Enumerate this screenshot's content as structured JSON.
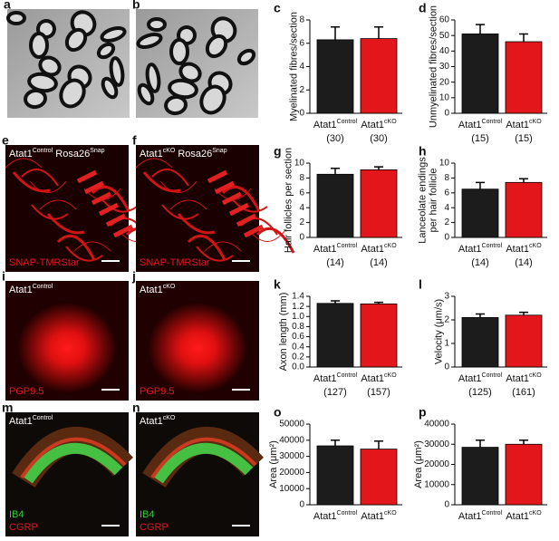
{
  "chart_data": [
    {
      "type": "bar",
      "panel": "c",
      "ylabel": "Myelinated fibres/section",
      "categories": [
        "Atat1",
        "Atat1"
      ],
      "category_superscripts": [
        "Control",
        "cKO"
      ],
      "sample_sizes": [
        "(30)",
        "(30)"
      ],
      "values": [
        6.3,
        6.4
      ],
      "errors": [
        1.1,
        1.0
      ],
      "colors": [
        "#1c1c1c",
        "#e3161c"
      ],
      "ylim": [
        0,
        8
      ],
      "yticks": [
        0,
        2,
        4,
        6,
        8
      ]
    },
    {
      "type": "bar",
      "panel": "d",
      "ylabel": "Unmyelinated fibres/section",
      "categories": [
        "Atat1",
        "Atat1"
      ],
      "category_superscripts": [
        "Control",
        "cKO"
      ],
      "sample_sizes": [
        "(15)",
        "(15)"
      ],
      "values": [
        51,
        46
      ],
      "errors": [
        6,
        5
      ],
      "colors": [
        "#1c1c1c",
        "#e3161c"
      ],
      "ylim": [
        0,
        60
      ],
      "yticks": [
        0,
        10,
        20,
        30,
        40,
        50,
        60
      ]
    },
    {
      "type": "bar",
      "panel": "g",
      "ylabel": "Hair follicles per section",
      "categories": [
        "Atat1",
        "Atat1"
      ],
      "category_superscripts": [
        "Control",
        "cKO"
      ],
      "sample_sizes": [
        "(14)",
        "(14)"
      ],
      "values": [
        8.5,
        9.1
      ],
      "errors": [
        0.8,
        0.4
      ],
      "colors": [
        "#1c1c1c",
        "#e3161c"
      ],
      "ylim": [
        0,
        10
      ],
      "yticks": [
        0,
        2,
        4,
        6,
        8,
        10
      ]
    },
    {
      "type": "bar",
      "panel": "h",
      "ylabel": [
        "Lanceolate endings",
        "per hair follicle"
      ],
      "categories": [
        "Atat1",
        "Atat1"
      ],
      "category_superscripts": [
        "Control",
        "cKO"
      ],
      "sample_sizes": [
        "(14)",
        "(14)"
      ],
      "values": [
        6.5,
        7.4
      ],
      "errors": [
        0.9,
        0.5
      ],
      "colors": [
        "#1c1c1c",
        "#e3161c"
      ],
      "ylim": [
        0,
        10
      ],
      "yticks": [
        0,
        2,
        4,
        6,
        8,
        10
      ]
    },
    {
      "type": "bar",
      "panel": "k",
      "ylabel": "Axon length (mm)",
      "categories": [
        "Atat1",
        "Atat1"
      ],
      "category_superscripts": [
        "Control",
        "cKO"
      ],
      "sample_sizes": [
        "(127)",
        "(157)"
      ],
      "values": [
        1.26,
        1.25
      ],
      "errors": [
        0.05,
        0.03
      ],
      "colors": [
        "#1c1c1c",
        "#e3161c"
      ],
      "ylim": [
        0,
        1.4
      ],
      "yticks": [
        {
          "value": 0,
          "label": "0.0"
        },
        0.2,
        0.4,
        0.6,
        0.8,
        {
          "value": 1,
          "label": "1.0"
        },
        1.2,
        1.4
      ]
    },
    {
      "type": "bar",
      "panel": "l",
      "ylabel": "Velocity (μm/s)",
      "categories": [
        "Atat1",
        "Atat1"
      ],
      "category_superscripts": [
        "Control",
        "cKO"
      ],
      "sample_sizes": [
        "(125)",
        "(161)"
      ],
      "values": [
        2.1,
        2.2
      ],
      "errors": [
        0.15,
        0.12
      ],
      "colors": [
        "#1c1c1c",
        "#e3161c"
      ],
      "ylim": [
        0,
        3
      ],
      "yticks": [
        0,
        1,
        2,
        3
      ]
    },
    {
      "type": "bar",
      "panel": "o",
      "ylabel": "Area (μm²)",
      "categories": [
        "Atat1",
        "Atat1"
      ],
      "category_superscripts": [
        "Control",
        "cKO"
      ],
      "values": [
        36500,
        34500
      ],
      "errors": [
        3500,
        5000
      ],
      "colors": [
        "#1c1c1c",
        "#e3161c"
      ],
      "ylim": [
        0,
        50000
      ],
      "yticks": [
        0,
        10000,
        20000,
        30000,
        40000,
        50000
      ]
    },
    {
      "type": "bar",
      "panel": "p",
      "ylabel": "Area (μm²)",
      "categories": [
        "Atat1",
        "Atat1"
      ],
      "category_superscripts": [
        "Control",
        "cKO"
      ],
      "values": [
        28500,
        30000
      ],
      "errors": [
        3500,
        2000
      ],
      "colors": [
        "#1c1c1c",
        "#e3161c"
      ],
      "ylim": [
        0,
        40000
      ],
      "yticks": [
        0,
        10000,
        20000,
        30000,
        40000
      ]
    }
  ],
  "images": [
    {
      "panel": "a"
    },
    {
      "panel": "b"
    },
    {
      "panel": "e",
      "title": "Atat1",
      "title_sup": "Control",
      "title2": "Rosa26",
      "title2_sup": "Snap",
      "stains": [
        "SNAP-TMRStar"
      ],
      "stain_colors": [
        "#e3161c"
      ]
    },
    {
      "panel": "f",
      "title": "Atat1",
      "title_sup": "cKO",
      "title2": "Rosa26",
      "title2_sup": "Snap",
      "stains": [
        "SNAP-TMRStar"
      ],
      "stain_colors": [
        "#e3161c"
      ]
    },
    {
      "panel": "i",
      "title": "Atat1",
      "title_sup": "Control",
      "stains": [
        "PGP9.5"
      ],
      "stain_colors": [
        "#e3161c"
      ]
    },
    {
      "panel": "j",
      "title": "Atat1",
      "title_sup": "cKO",
      "stains": [
        "PGP9.5"
      ],
      "stain_colors": [
        "#e3161c"
      ]
    },
    {
      "panel": "m",
      "title": "Atat1",
      "title_sup": "Control",
      "stains": [
        "IB4",
        "CGRP"
      ],
      "stain_colors": [
        "#3ccb3c",
        "#e3161c"
      ]
    },
    {
      "panel": "n",
      "title": "Atat1",
      "title_sup": "cKO",
      "stains": [
        "IB4",
        "CGRP"
      ],
      "stain_colors": [
        "#3ccb3c",
        "#e3161c"
      ]
    }
  ]
}
